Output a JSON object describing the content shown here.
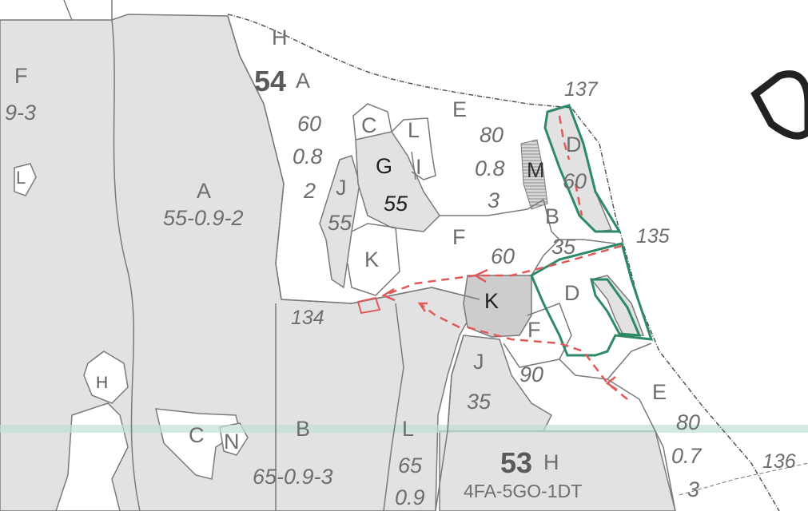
{
  "colors": {
    "stand_fill": "#e2e2e2",
    "dark_fill": "#cdcdcd",
    "boundary_line": "#7a7a7a",
    "green_outline": "#2d8a66",
    "red_route": "#e05a5a",
    "band": "#bfe0d8"
  },
  "parcels": {
    "p54": {
      "number": "54",
      "letter": "A"
    },
    "p53": {
      "number": "53",
      "letter": "H",
      "composition": "4FA-5GO-1DT"
    }
  },
  "stands": [
    {
      "id": "F-left",
      "letter": "F",
      "spec": "9-3"
    },
    {
      "id": "L-left",
      "letter": "L"
    },
    {
      "id": "A-big",
      "letter": "A",
      "spec": "55-0.9-2"
    },
    {
      "id": "H-top",
      "letter": "H"
    },
    {
      "id": "A54",
      "values": [
        "60",
        "0.8",
        "2"
      ]
    },
    {
      "id": "C-top",
      "letter": "C"
    },
    {
      "id": "L-top",
      "letter": "L"
    },
    {
      "id": "G",
      "letter": "G",
      "value": "55"
    },
    {
      "id": "I",
      "letter": "I"
    },
    {
      "id": "J-top",
      "letter": "J",
      "value": "55"
    },
    {
      "id": "E-top",
      "letter": "E",
      "values": [
        "80",
        "0.8",
        "3"
      ]
    },
    {
      "id": "M",
      "letter": "M"
    },
    {
      "id": "D-top",
      "letter": "D",
      "value": "60"
    },
    {
      "id": "B-right",
      "letter": "B",
      "value": "35"
    },
    {
      "id": "F-mid",
      "letter": "F",
      "value": "60"
    },
    {
      "id": "K-top",
      "letter": "K"
    },
    {
      "id": "K-grey",
      "letter": "K"
    },
    {
      "id": "D-mid",
      "letter": "D"
    },
    {
      "id": "F-low",
      "letter": "F",
      "value": "90"
    },
    {
      "id": "J-low",
      "letter": "J",
      "value": "35"
    },
    {
      "id": "H-small",
      "letter": "H"
    },
    {
      "id": "C-bottom",
      "letter": "C"
    },
    {
      "id": "N",
      "letter": "N"
    },
    {
      "id": "B-bottom",
      "letter": "B",
      "spec": "65-0.9-3"
    },
    {
      "id": "L-bottom",
      "letter": "L",
      "values": [
        "65",
        "0.9"
      ]
    },
    {
      "id": "E-bottom",
      "letter": "E",
      "values": [
        "80",
        "0.7",
        "3"
      ]
    }
  ],
  "points": [
    "137",
    "135",
    "134",
    "136"
  ],
  "corner_letter": "D"
}
